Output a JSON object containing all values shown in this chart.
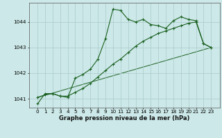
{
  "xlabel": "Graphe pression niveau de la mer (hPa)",
  "bg_color": "#cce8e8",
  "grid_color": "#aacaca",
  "line_color": "#1a6020",
  "hours": [
    0,
    1,
    2,
    3,
    4,
    5,
    6,
    7,
    8,
    9,
    10,
    11,
    12,
    13,
    14,
    15,
    16,
    17,
    18,
    19,
    20,
    21,
    22,
    23
  ],
  "series1": [
    1040.8,
    1041.2,
    1041.2,
    1041.1,
    1041.05,
    1041.8,
    1041.95,
    1042.15,
    1042.55,
    1043.35,
    1044.5,
    1044.45,
    1044.1,
    1044.0,
    1044.1,
    1043.9,
    1043.85,
    1043.75,
    1044.05,
    1044.2,
    1044.1,
    1044.05,
    1043.15,
    1043.0
  ],
  "series2": [
    1041.05,
    1041.15,
    1041.2,
    1041.1,
    1041.1,
    1041.25,
    1041.4,
    1041.6,
    1041.85,
    1042.1,
    1042.35,
    1042.55,
    1042.8,
    1043.05,
    1043.25,
    1043.4,
    1043.55,
    1043.65,
    1043.75,
    1043.85,
    1043.95,
    1044.0,
    1043.15,
    1043.0
  ],
  "series3_x": [
    0,
    23
  ],
  "series3_y": [
    1041.05,
    1043.0
  ],
  "ylim": [
    1040.65,
    1044.75
  ],
  "yticks": [
    1041,
    1042,
    1043,
    1044
  ],
  "xticks": [
    0,
    1,
    2,
    3,
    4,
    5,
    6,
    7,
    8,
    9,
    10,
    11,
    12,
    13,
    14,
    15,
    16,
    17,
    18,
    19,
    20,
    21,
    22,
    23
  ],
  "tick_fontsize": 5.2,
  "xlabel_fontsize": 6.0,
  "ylabel_fontsize": 6.0,
  "lw1": 0.8,
  "lw2": 0.8,
  "lw3": 0.7,
  "markersize": 2.5
}
